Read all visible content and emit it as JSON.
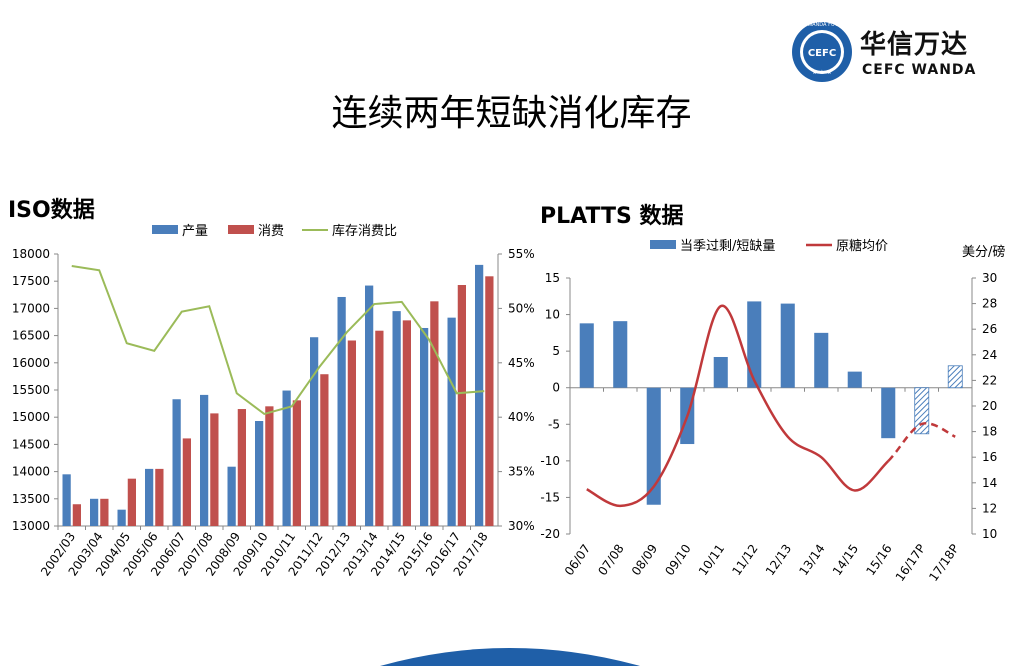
{
  "slide": {
    "title": "连续两年短缺消化库存",
    "logo_cn": "华信万达",
    "logo_en": "CEFC WANDA",
    "logo_badge": "CEFC",
    "logo_ring_text": "CEFC WANDA FUTURES"
  },
  "iso": {
    "section_title": "ISO数据"
  },
  "platts": {
    "section_title": "PLATTS 数据"
  },
  "colors": {
    "blue": "#4a7ebb",
    "red": "#c0504d",
    "green": "#9bbb59",
    "dark_red": "#c0393b",
    "brand_blue": "#1f5fa8"
  },
  "chart_data": [
    {
      "type": "bar",
      "title": "",
      "categories": [
        "2002/03",
        "2003/04",
        "2004/05",
        "2005/06",
        "2006/07",
        "2007/08",
        "2008/09",
        "2009/10",
        "2010/11",
        "2011/12",
        "2012/13",
        "2013/14",
        "2014/15",
        "2015/16",
        "2016/17",
        "2017/18"
      ],
      "series": [
        {
          "name": "产量",
          "type": "bar",
          "axis": "left",
          "color": "#4a7ebb",
          "values": [
            13950,
            13500,
            13300,
            14050,
            15330,
            15410,
            14090,
            14930,
            15490,
            16470,
            17210,
            17420,
            16950,
            16640,
            16830,
            17800
          ]
        },
        {
          "name": "消费",
          "type": "bar",
          "axis": "left",
          "color": "#c0504d",
          "values": [
            13400,
            13500,
            13870,
            14050,
            14610,
            15070,
            15150,
            15200,
            15310,
            15790,
            16410,
            16590,
            16780,
            17130,
            17430,
            17590
          ]
        },
        {
          "name": "库存消费比",
          "type": "line",
          "axis": "right",
          "color": "#9bbb59",
          "values": [
            53.9,
            53.5,
            46.8,
            46.1,
            49.7,
            50.2,
            42.2,
            40.3,
            41.0,
            44.6,
            47.8,
            50.4,
            50.6,
            47.1,
            42.2,
            42.4
          ]
        }
      ],
      "ylim": [
        13000,
        18000
      ],
      "yticks": [
        13000,
        13500,
        14000,
        14500,
        15000,
        15500,
        16000,
        16500,
        17000,
        17500,
        18000
      ],
      "y2lim": [
        30,
        55
      ],
      "y2ticks": [
        "30%",
        "35%",
        "40%",
        "45%",
        "50%",
        "55%"
      ],
      "legend": "top",
      "grid": false
    },
    {
      "type": "bar",
      "title": "",
      "y2_unit_label": "美分/磅",
      "categories": [
        "06/07",
        "07/08",
        "08/09",
        "09/10",
        "10/11",
        "11/12",
        "12/13",
        "13/14",
        "14/15",
        "15/16",
        "16/17P",
        "17/18P"
      ],
      "series": [
        {
          "name": "当季过剩/短缺量",
          "type": "bar",
          "axis": "left",
          "color": "#4a7ebb",
          "values": [
            8.8,
            9.1,
            -16.0,
            -7.7,
            4.2,
            11.8,
            11.5,
            7.5,
            2.2,
            -6.9,
            -6.3,
            3.0
          ],
          "hatched": [
            false,
            false,
            false,
            false,
            false,
            false,
            false,
            false,
            false,
            false,
            true,
            true
          ]
        },
        {
          "name": "原糖均价",
          "type": "line",
          "axis": "right",
          "color": "#c0393b",
          "values": [
            13.5,
            12.2,
            13.7,
            19.2,
            27.8,
            22.0,
            17.6,
            16.0,
            13.4,
            15.7,
            18.6,
            17.6
          ],
          "dashed_from": 9
        }
      ],
      "ylim": [
        -20,
        15
      ],
      "yticks": [
        -20,
        -15,
        -10,
        -5,
        0,
        5,
        10,
        15
      ],
      "y2lim": [
        10,
        30
      ],
      "y2ticks": [
        10,
        12,
        14,
        16,
        18,
        20,
        22,
        24,
        26,
        28,
        30
      ],
      "legend": "top",
      "grid": false
    }
  ]
}
